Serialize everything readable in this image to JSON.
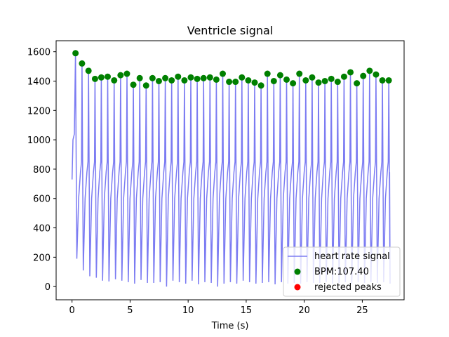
{
  "chart_data": {
    "type": "line",
    "title": "Ventricle signal",
    "xlabel": "Time (s)",
    "ylabel": "",
    "xlim": [
      -1.37,
      28.6
    ],
    "ylim": [
      -90,
      1675
    ],
    "xticks": [
      0,
      5,
      10,
      15,
      20,
      25
    ],
    "yticks": [
      0,
      200,
      400,
      600,
      800,
      1000,
      1200,
      1400,
      1600
    ],
    "grid": false,
    "legend_position": "lower-right",
    "colors": {
      "signal": "#7b7bf2",
      "peaks": "#008000",
      "rejected": "#ff0000"
    },
    "series": [
      {
        "name": "heart rate signal",
        "kind": "line",
        "start_value": 730,
        "end_time": 27.3
      },
      {
        "name": "BPM:107.40",
        "kind": "scatter",
        "x": [
          0.3,
          0.86,
          1.42,
          1.98,
          2.52,
          3.07,
          3.63,
          4.18,
          4.73,
          5.28,
          5.83,
          6.38,
          6.93,
          7.48,
          8.03,
          8.58,
          9.13,
          9.68,
          10.23,
          10.78,
          11.33,
          11.88,
          12.43,
          12.98,
          13.53,
          14.08,
          14.63,
          15.18,
          15.73,
          16.28,
          16.83,
          17.38,
          17.93,
          18.48,
          19.03,
          19.58,
          20.13,
          20.68,
          21.23,
          21.78,
          22.33,
          22.88,
          23.43,
          23.98,
          24.53,
          25.08,
          25.63,
          26.18,
          26.73,
          27.28
        ],
        "y": [
          1590,
          1520,
          1470,
          1415,
          1425,
          1430,
          1405,
          1440,
          1450,
          1375,
          1420,
          1370,
          1420,
          1400,
          1420,
          1405,
          1430,
          1405,
          1425,
          1415,
          1420,
          1425,
          1410,
          1450,
          1395,
          1395,
          1425,
          1405,
          1390,
          1370,
          1450,
          1400,
          1440,
          1410,
          1385,
          1450,
          1405,
          1425,
          1390,
          1400,
          1415,
          1395,
          1430,
          1460,
          1385,
          1435,
          1470,
          1445,
          1405,
          1405
        ]
      },
      {
        "name": "rejected peaks",
        "kind": "scatter",
        "x": [],
        "y": []
      }
    ]
  }
}
